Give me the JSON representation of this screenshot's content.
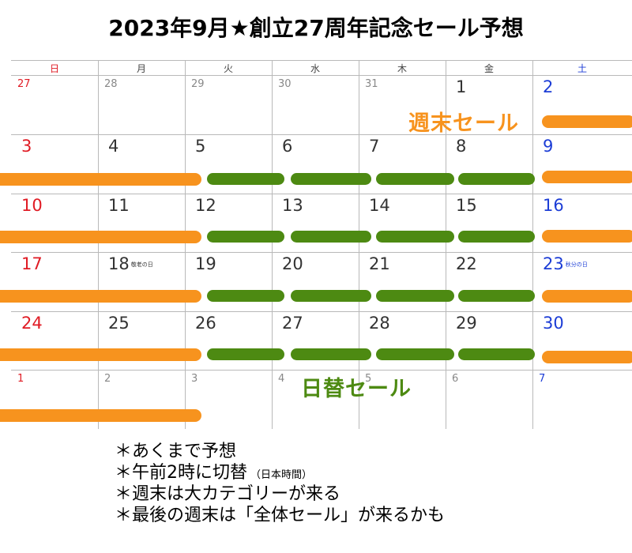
{
  "title": "2023年9月★創立27周年記念セール予想",
  "colors": {
    "sunday_red": "#e01b24",
    "saturday_blue": "#1c3dd6",
    "weekend_sale_orange": "#f7931e",
    "daily_sale_green": "#4d8a12",
    "text": "#333333",
    "muted_text": "#888888"
  },
  "weekdays": [
    "日",
    "月",
    "火",
    "水",
    "木",
    "金",
    "土"
  ],
  "weeks": [
    [
      {
        "n": "27",
        "out": true
      },
      {
        "n": "28",
        "out": true
      },
      {
        "n": "29",
        "out": true
      },
      {
        "n": "30",
        "out": true
      },
      {
        "n": "31",
        "out": true
      },
      {
        "n": "1"
      },
      {
        "n": "2"
      }
    ],
    [
      {
        "n": "3"
      },
      {
        "n": "4"
      },
      {
        "n": "5"
      },
      {
        "n": "6"
      },
      {
        "n": "7"
      },
      {
        "n": "8"
      },
      {
        "n": "9"
      }
    ],
    [
      {
        "n": "10"
      },
      {
        "n": "11"
      },
      {
        "n": "12"
      },
      {
        "n": "13"
      },
      {
        "n": "14"
      },
      {
        "n": "15"
      },
      {
        "n": "16"
      }
    ],
    [
      {
        "n": "17"
      },
      {
        "n": "18",
        "holiday": "敬老の日"
      },
      {
        "n": "19"
      },
      {
        "n": "20"
      },
      {
        "n": "21"
      },
      {
        "n": "22"
      },
      {
        "n": "23",
        "holiday": "秋分の日"
      }
    ],
    [
      {
        "n": "24"
      },
      {
        "n": "25"
      },
      {
        "n": "26"
      },
      {
        "n": "27"
      },
      {
        "n": "28"
      },
      {
        "n": "29"
      },
      {
        "n": "30"
      }
    ],
    [
      {
        "n": "1",
        "out": true
      },
      {
        "n": "2",
        "out": true
      },
      {
        "n": "3",
        "out": true
      },
      {
        "n": "4",
        "out": true
      },
      {
        "n": "5",
        "out": true
      },
      {
        "n": "6",
        "out": true
      },
      {
        "n": "7",
        "out": true
      }
    ]
  ],
  "labels": {
    "weekend_sale": "週末セール",
    "daily_sale": "日替セール"
  },
  "notes": [
    {
      "text": "＊あくまで予想"
    },
    {
      "text": "＊午前2時に切替",
      "paren": "（日本時間）"
    },
    {
      "text": "＊週末は大カテゴリーが来る"
    },
    {
      "text": "＊最後の週末は「全体セール」が来るかも"
    }
  ]
}
